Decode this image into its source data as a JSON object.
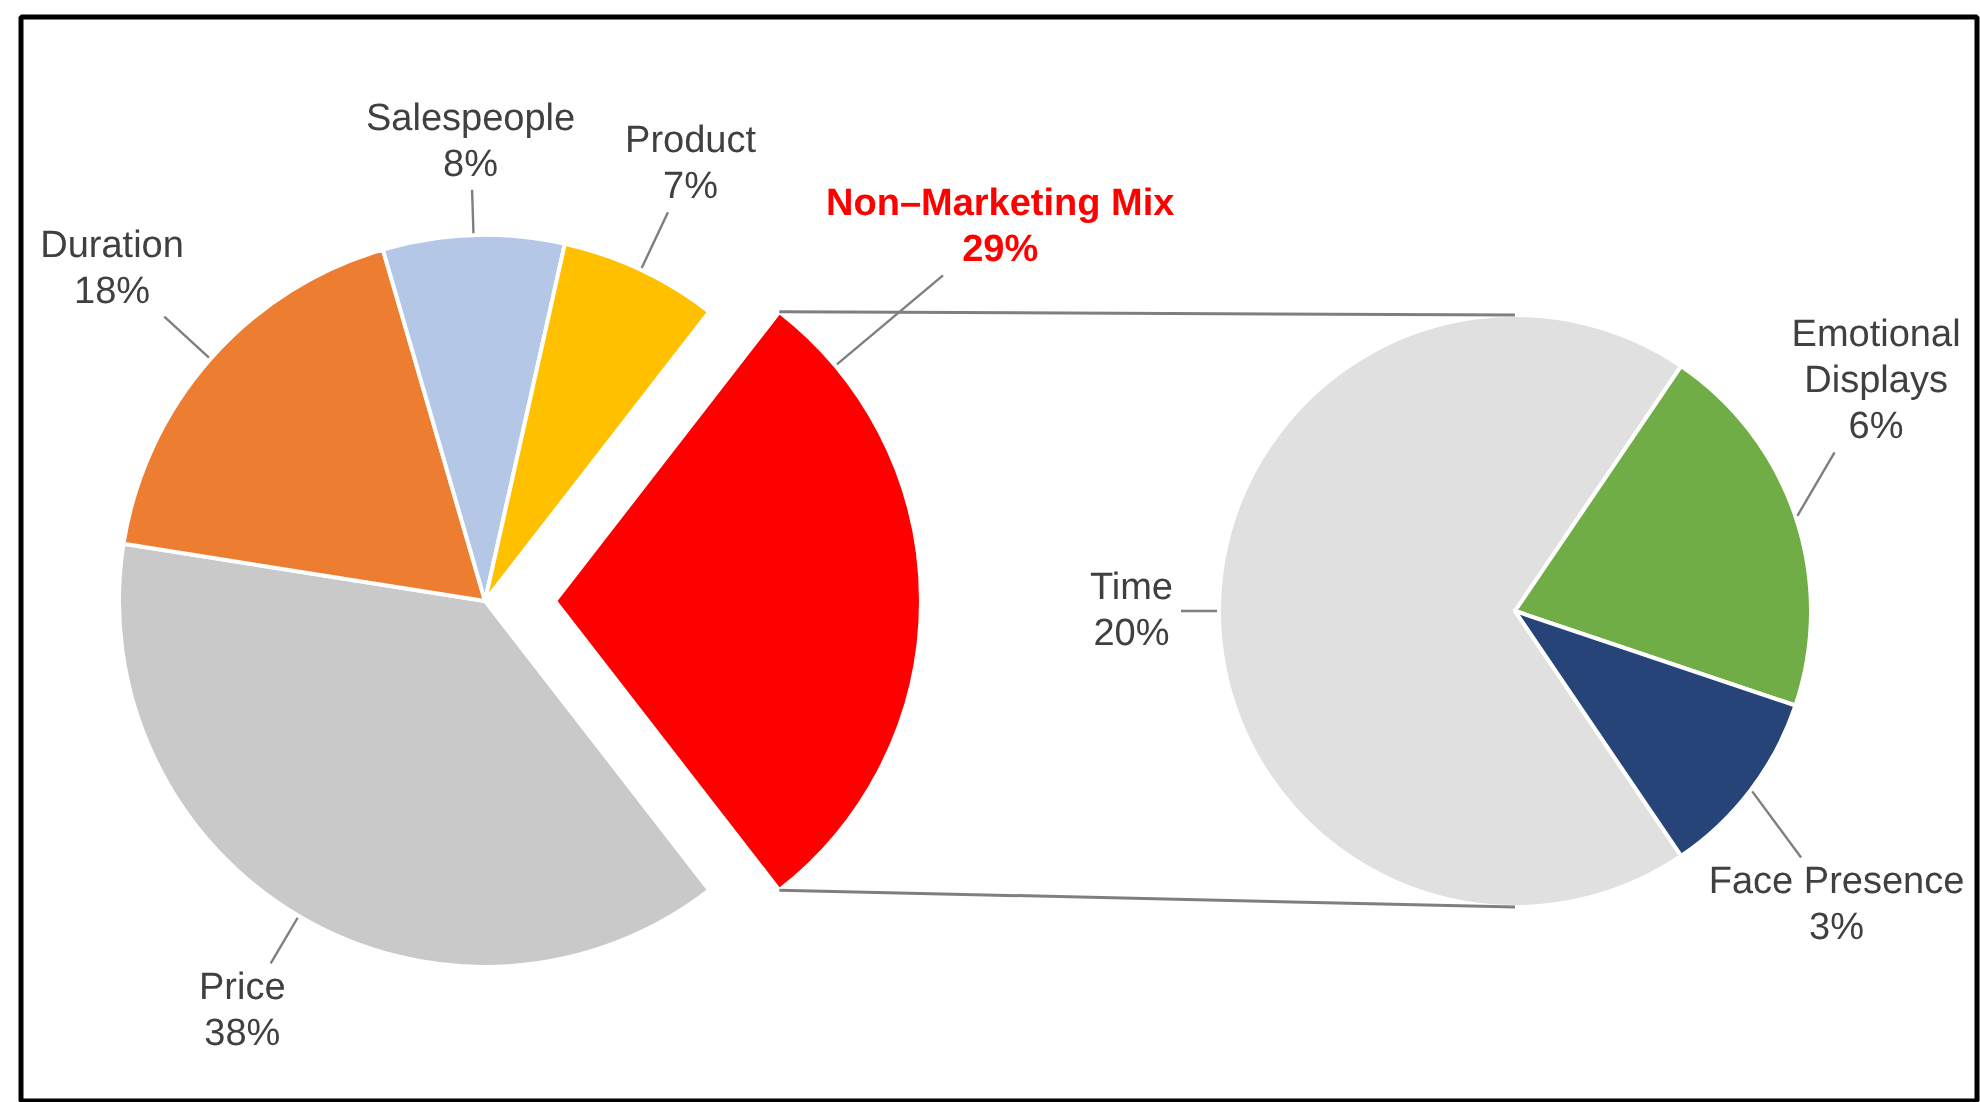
{
  "chart_data": [
    {
      "type": "pie",
      "categories": [
        "Price",
        "Duration",
        "Salespeople",
        "Product",
        "Non–Marketing Mix"
      ],
      "values": [
        38,
        18,
        8,
        7,
        29
      ],
      "colors": [
        "#c9c9c9",
        "#ed7d31",
        "#b4c7e7",
        "#ffc000",
        "#ff0000"
      ],
      "value_labels": [
        "38%",
        "18%",
        "8%",
        "7%",
        "29%"
      ]
    },
    {
      "type": "pie",
      "categories": [
        "Time",
        "Emotional Displays",
        "Face Presence"
      ],
      "values": [
        20,
        6,
        3
      ],
      "colors": [
        "#e0e0e0",
        "#70ad47",
        "#264478"
      ],
      "value_labels": [
        "20%",
        "6%",
        "3%"
      ]
    }
  ]
}
